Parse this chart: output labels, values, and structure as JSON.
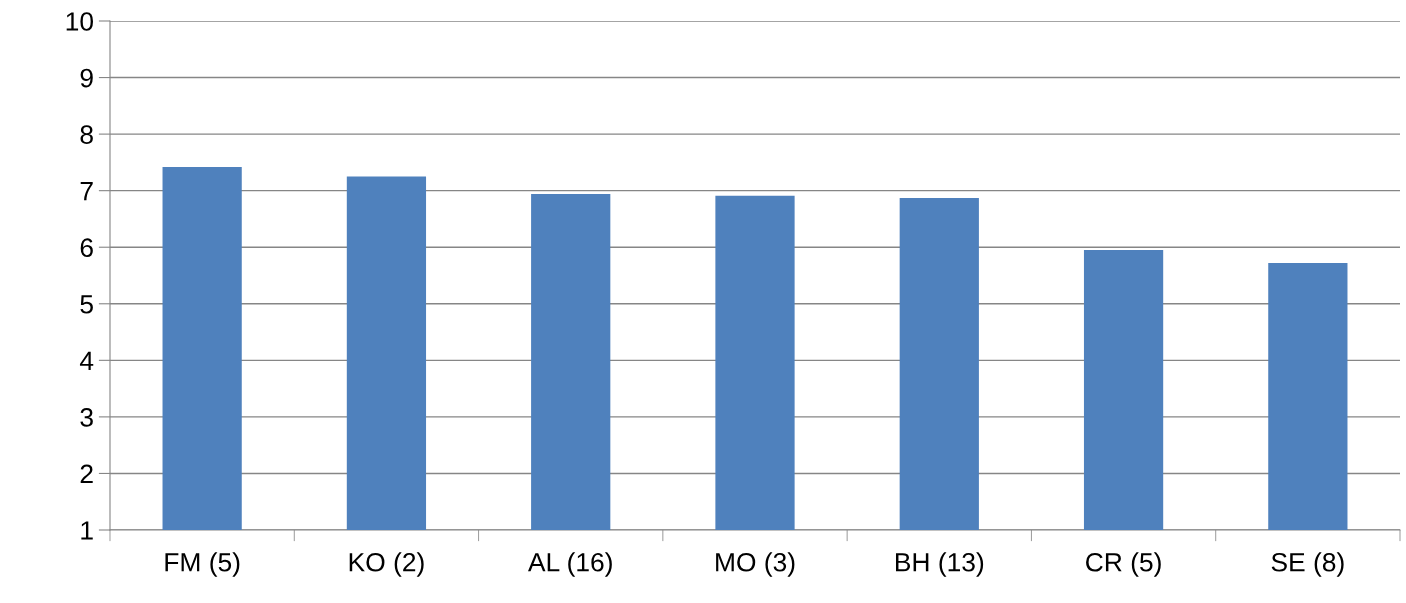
{
  "chart_data": {
    "type": "bar",
    "categories": [
      "FM (5)",
      "KO (2)",
      "AL (16)",
      "MO (3)",
      "BH (13)",
      "CR (5)",
      "SE (8)"
    ],
    "values": [
      7.42,
      7.25,
      6.94,
      6.91,
      6.87,
      5.95,
      5.72
    ],
    "color": "#4f81bd",
    "ylim": [
      1,
      10
    ],
    "yticks": [
      1,
      2,
      3,
      4,
      5,
      6,
      7,
      8,
      9,
      10
    ],
    "grid": "y"
  }
}
